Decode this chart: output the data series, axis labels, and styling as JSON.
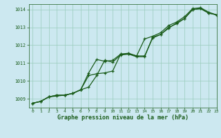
{
  "title": "Graphe pression niveau de la mer (hPa)",
  "background_color": "#cce8f0",
  "grid_color": "#99ccbb",
  "line_color": "#1a5c1a",
  "xlim": [
    -0.5,
    23
  ],
  "ylim": [
    1008.5,
    1014.3
  ],
  "yticks": [
    1009,
    1010,
    1011,
    1012,
    1013,
    1014
  ],
  "xticks": [
    0,
    1,
    2,
    3,
    4,
    5,
    6,
    7,
    8,
    9,
    10,
    11,
    12,
    13,
    14,
    15,
    16,
    17,
    18,
    19,
    20,
    21,
    22,
    23
  ],
  "series": [
    [
      1008.75,
      1008.85,
      1009.1,
      1009.2,
      1009.2,
      1009.3,
      1009.5,
      1009.65,
      1010.3,
      1011.15,
      1011.05,
      1011.45,
      1011.5,
      1011.35,
      1011.35,
      1012.45,
      1012.6,
      1013.0,
      1013.2,
      1013.5,
      1014.0,
      1014.05,
      1013.8,
      1013.7
    ],
    [
      1008.75,
      1008.85,
      1009.1,
      1009.2,
      1009.2,
      1009.3,
      1009.5,
      1010.45,
      1011.2,
      1011.1,
      1011.15,
      1011.5,
      1011.55,
      1011.4,
      1012.35,
      1012.5,
      1012.7,
      1013.1,
      1013.3,
      1013.6,
      1014.05,
      1014.1,
      1013.85,
      1013.7
    ],
    [
      1008.75,
      1008.85,
      1009.1,
      1009.15,
      1009.2,
      1009.3,
      1009.5,
      1010.3,
      1010.4,
      1010.45,
      1010.55,
      1011.5,
      1011.5,
      1011.4,
      1011.4,
      1012.4,
      1012.6,
      1012.95,
      1013.25,
      1013.5,
      1014.0,
      1014.05,
      1013.8,
      1013.7
    ]
  ],
  "label_fontsize": 5,
  "xlabel_fontsize": 6,
  "tick_fontsize": 4.5,
  "linewidth": 0.9,
  "markersize": 3.5
}
